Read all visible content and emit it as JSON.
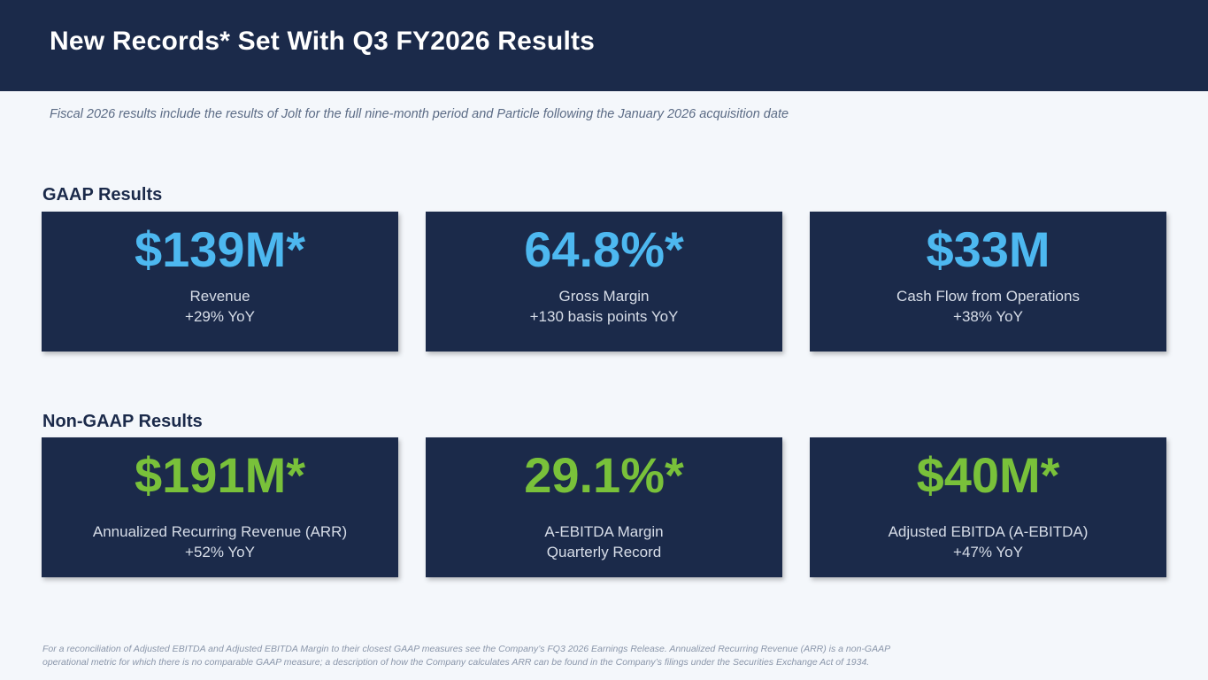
{
  "header": {
    "title": "New Records* Set With Q3 FY2026 Results"
  },
  "subtitle": "Fiscal 2026 results include the results of Jolt for the full nine-month period and Particle following the January 2026 acquisition date",
  "gaap": {
    "heading": "GAAP Results",
    "cards": [
      {
        "value": "$139M*",
        "label": "Revenue",
        "change": "+29% YoY"
      },
      {
        "value": "64.8%*",
        "label": "Gross Margin",
        "change": "+130 basis points YoY"
      },
      {
        "value": "$33M",
        "label": "Cash Flow from Operations",
        "change": "+38% YoY"
      }
    ]
  },
  "non_gaap": {
    "heading": "Non-GAAP Results",
    "cards": [
      {
        "value": "$191M*",
        "label": "Annualized Recurring Revenue (ARR)",
        "change": "+52% YoY"
      },
      {
        "value": "29.1%*",
        "label": "A-EBITDA Margin",
        "change": "Quarterly Record"
      },
      {
        "value": "$40M*",
        "label": "Adjusted EBITDA (A-EBITDA)",
        "change": "+47% YoY"
      }
    ]
  },
  "footnote": {
    "line1": "For a reconciliation of Adjusted EBITDA and Adjusted EBITDA Margin to their closest GAAP measures see the Company’s FQ3 2026 Earnings Release. Annualized Recurring Revenue (ARR) is a non-GAAP",
    "line2": "operational metric for which there is no comparable GAAP measure; a description of how the Company calculates ARR can be found in the Company’s filings under the Securities Exchange Act of 1934."
  },
  "colors": {
    "navy": "#1b2a4a",
    "gaap_accent": "#4db8f0",
    "non_gaap_accent": "#79c13a",
    "background": "#f4f7fb"
  }
}
